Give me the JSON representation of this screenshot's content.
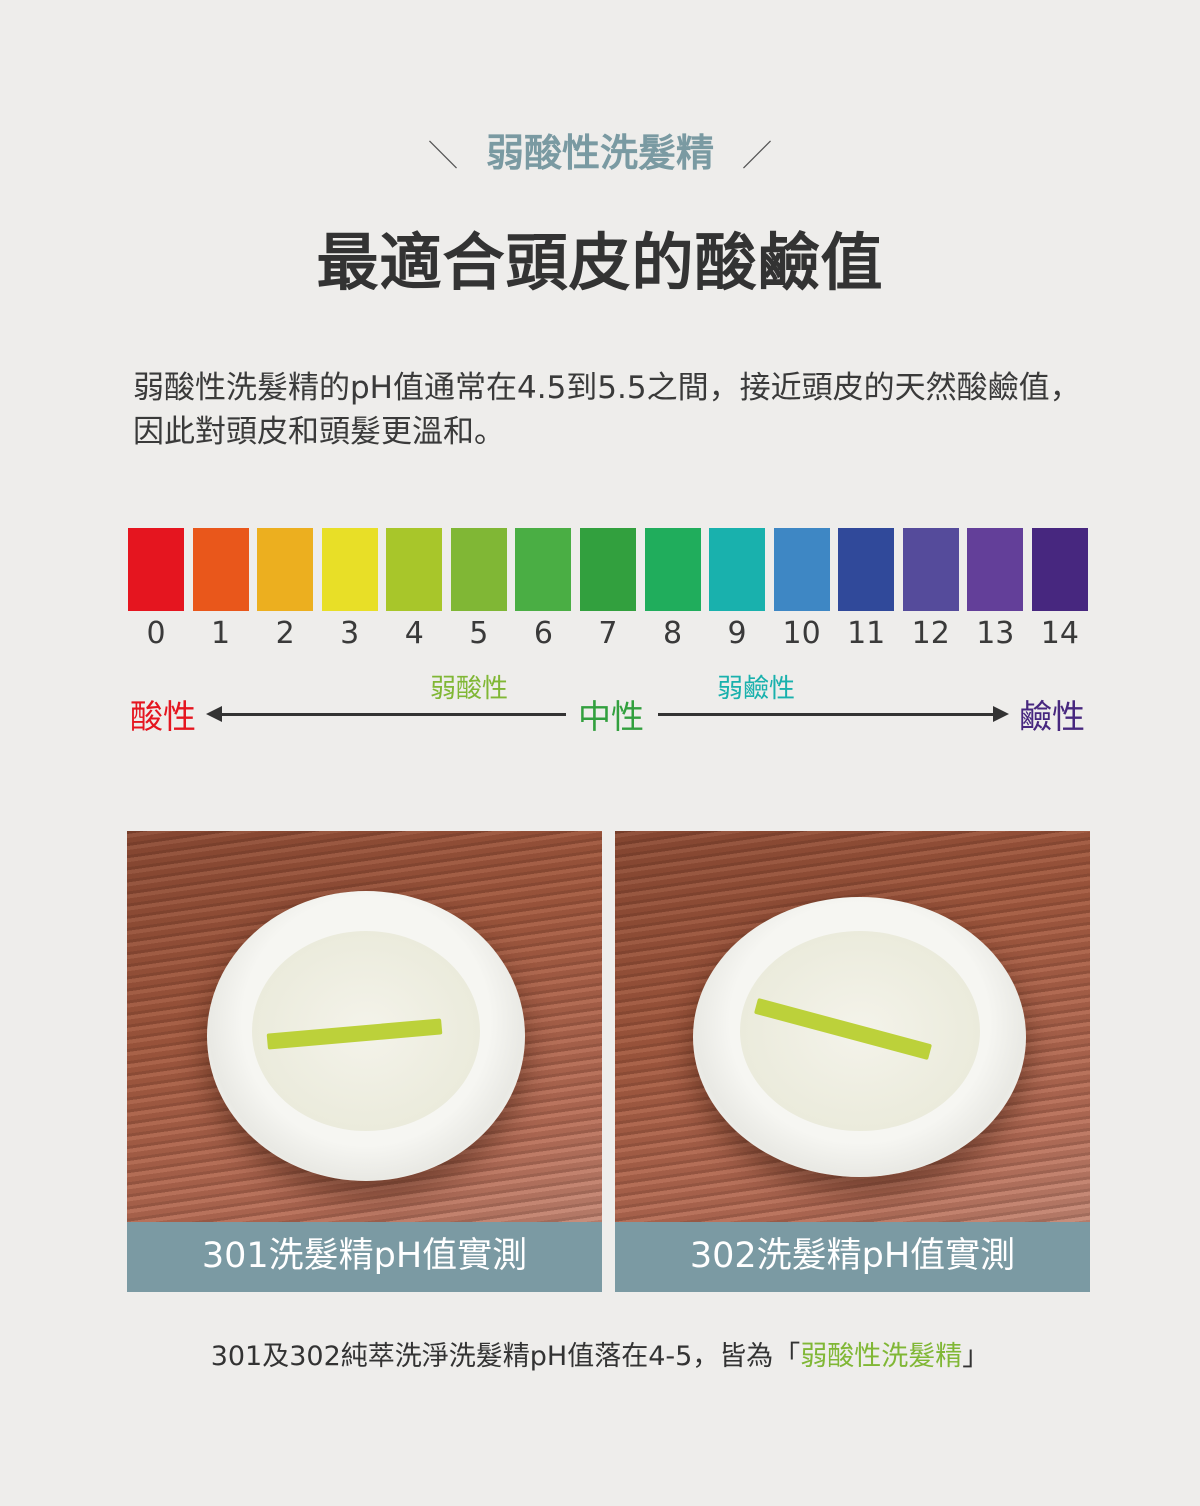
{
  "header": {
    "subtitle": "弱酸性洗髮精",
    "slash_left": "＼",
    "slash_right": "／",
    "title": "最適合頭皮的酸鹼值"
  },
  "intro": "弱酸性洗髮精的pH值通常在4.5到5.5之間，接近頭皮的天然酸鹼值，因此對頭皮和頭髮更溫和。",
  "ph_scale": {
    "values": [
      "0",
      "1",
      "2",
      "3",
      "4",
      "5",
      "6",
      "7",
      "8",
      "9",
      "10",
      "11",
      "12",
      "13",
      "14"
    ],
    "colors": [
      "#e5151f",
      "#e9571b",
      "#ecaf1f",
      "#e8df27",
      "#a8c62a",
      "#80b735",
      "#4aae44",
      "#32a03e",
      "#20ad5c",
      "#19b1ad",
      "#3e87c4",
      "#30499a",
      "#554b9b",
      "#633f99",
      "#47277f"
    ],
    "labels": {
      "acid": "酸性",
      "weak_acid": "弱酸性",
      "neutral": "中性",
      "weak_base": "弱鹼性",
      "base": "鹼性"
    },
    "label_colors": {
      "acid": "#e5151f",
      "weak_acid": "#80b735",
      "neutral": "#32a03e",
      "weak_base": "#19b1ad",
      "base": "#47277f"
    }
  },
  "photos": [
    {
      "caption": "301洗髮精pH值實測"
    },
    {
      "caption": "302洗髮精pH值實測"
    }
  ],
  "footer": {
    "text_before": "301及302純萃洗淨洗髮精pH值落在4-5，皆為「",
    "highlight": "弱酸性洗髮精",
    "text_after": "」",
    "highlight_color": "#80b735"
  }
}
